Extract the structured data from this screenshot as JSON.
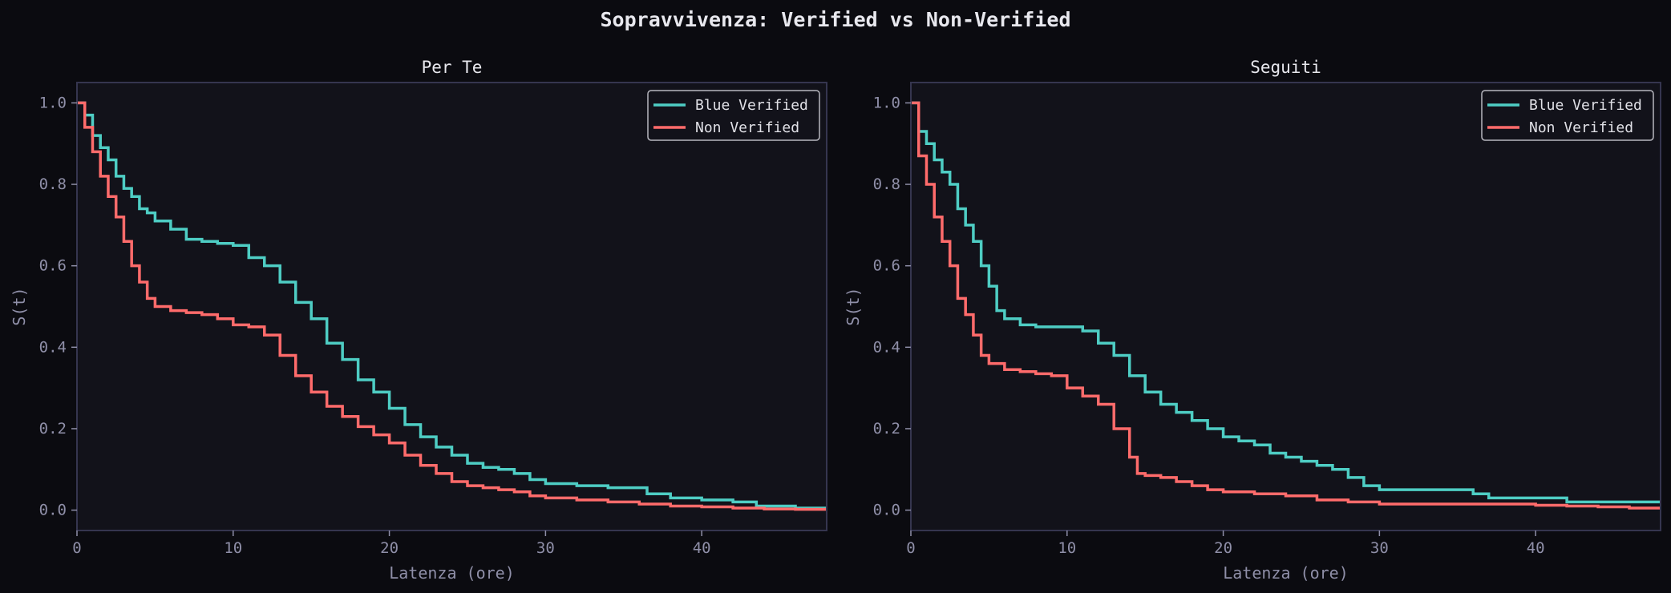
{
  "figure": {
    "title": "Sopravvivenza: Verified vs Non-Verified",
    "colors": {
      "background": "#0b0b10",
      "axes_background": "#12121a",
      "axes_border": "#35354f",
      "tick_label": "#8f8fa8",
      "title_text": "#e8e8ee",
      "verified": "#4ecdc4",
      "non_verified": "#ff6b6b"
    }
  },
  "chart_data": [
    {
      "type": "line",
      "subtype": "kaplan-meier step",
      "title": "Per Te",
      "xlabel": "Latenza (ore)",
      "ylabel": "S(t)",
      "xlim": [
        0,
        48
      ],
      "ylim": [
        -0.05,
        1.05
      ],
      "xticks": [
        0,
        10,
        20,
        30,
        40
      ],
      "xtick_labels": [
        "0",
        "10",
        "20",
        "30",
        "40"
      ],
      "yticks": [
        0.0,
        0.2,
        0.4,
        0.6,
        0.8,
        1.0
      ],
      "ytick_labels": [
        "0.0",
        "0.2",
        "0.4",
        "0.6",
        "0.8",
        "1.0"
      ],
      "grid": false,
      "legend_position": "upper right",
      "series": [
        {
          "name": "Blue Verified",
          "color": "#4ecdc4",
          "x": [
            0,
            0.5,
            1,
            1.5,
            2,
            2.5,
            3,
            3.5,
            4,
            4.5,
            5,
            6,
            7,
            8,
            9,
            10,
            11,
            12,
            13,
            14,
            15,
            16,
            17,
            18,
            19,
            20,
            21,
            22,
            23,
            24,
            25,
            26,
            27,
            28,
            29,
            30,
            32,
            34,
            35.5,
            36.5,
            38,
            40,
            42,
            43.5,
            46,
            48
          ],
          "values": [
            1.0,
            0.97,
            0.92,
            0.89,
            0.86,
            0.82,
            0.79,
            0.77,
            0.74,
            0.73,
            0.71,
            0.69,
            0.665,
            0.66,
            0.655,
            0.65,
            0.62,
            0.6,
            0.56,
            0.51,
            0.47,
            0.41,
            0.37,
            0.32,
            0.29,
            0.25,
            0.21,
            0.18,
            0.155,
            0.135,
            0.115,
            0.105,
            0.1,
            0.09,
            0.075,
            0.065,
            0.06,
            0.055,
            0.055,
            0.04,
            0.03,
            0.025,
            0.02,
            0.01,
            0.005,
            0.0
          ]
        },
        {
          "name": "Non Verified",
          "color": "#ff6b6b",
          "x": [
            0,
            0.5,
            1,
            1.5,
            2,
            2.5,
            3,
            3.5,
            4,
            4.5,
            5,
            6,
            7,
            8,
            9,
            10,
            11,
            12,
            13,
            14,
            15,
            16,
            17,
            18,
            19,
            20,
            21,
            22,
            23,
            24,
            25,
            26,
            27,
            28,
            29,
            30,
            32,
            34,
            36,
            38,
            40,
            42,
            44,
            46,
            48
          ],
          "values": [
            1.0,
            0.94,
            0.88,
            0.82,
            0.77,
            0.72,
            0.66,
            0.6,
            0.56,
            0.52,
            0.5,
            0.49,
            0.485,
            0.48,
            0.47,
            0.455,
            0.45,
            0.43,
            0.38,
            0.33,
            0.29,
            0.255,
            0.23,
            0.205,
            0.185,
            0.165,
            0.135,
            0.11,
            0.09,
            0.07,
            0.06,
            0.055,
            0.05,
            0.045,
            0.035,
            0.03,
            0.025,
            0.02,
            0.015,
            0.01,
            0.008,
            0.005,
            0.003,
            0.002,
            0.0
          ]
        }
      ]
    },
    {
      "type": "line",
      "subtype": "kaplan-meier step",
      "title": "Seguiti",
      "xlabel": "Latenza (ore)",
      "ylabel": "S(t)",
      "xlim": [
        0,
        48
      ],
      "ylim": [
        -0.05,
        1.05
      ],
      "xticks": [
        0,
        10,
        20,
        30,
        40
      ],
      "xtick_labels": [
        "0",
        "10",
        "20",
        "30",
        "40"
      ],
      "yticks": [
        0.0,
        0.2,
        0.4,
        0.6,
        0.8,
        1.0
      ],
      "ytick_labels": [
        "0.0",
        "0.2",
        "0.4",
        "0.6",
        "0.8",
        "1.0"
      ],
      "grid": false,
      "legend_position": "upper right",
      "series": [
        {
          "name": "Blue Verified",
          "color": "#4ecdc4",
          "x": [
            0,
            0.5,
            1,
            1.5,
            2,
            2.5,
            3,
            3.5,
            4,
            4.5,
            5,
            5.5,
            6,
            7,
            8,
            9,
            10,
            11,
            12,
            13,
            14,
            15,
            16,
            17,
            18,
            19,
            20,
            21,
            22,
            23,
            24,
            25,
            26,
            27,
            28,
            29,
            30,
            32,
            34,
            36,
            37,
            40,
            42,
            44,
            46,
            48
          ],
          "values": [
            1.0,
            0.93,
            0.9,
            0.86,
            0.83,
            0.8,
            0.74,
            0.7,
            0.66,
            0.6,
            0.55,
            0.49,
            0.47,
            0.455,
            0.45,
            0.45,
            0.45,
            0.44,
            0.41,
            0.38,
            0.33,
            0.29,
            0.26,
            0.24,
            0.22,
            0.2,
            0.18,
            0.17,
            0.16,
            0.14,
            0.13,
            0.12,
            0.11,
            0.1,
            0.08,
            0.06,
            0.05,
            0.05,
            0.05,
            0.04,
            0.03,
            0.03,
            0.02,
            0.02,
            0.02,
            0.02
          ]
        },
        {
          "name": "Non Verified",
          "color": "#ff6b6b",
          "x": [
            0,
            0.5,
            1,
            1.5,
            2,
            2.5,
            3,
            3.5,
            4,
            4.5,
            5,
            6,
            7,
            8,
            9,
            10,
            11,
            12,
            13,
            14,
            14.5,
            15,
            16,
            17,
            18,
            19,
            20,
            22,
            24,
            26,
            28,
            30,
            32,
            34,
            36,
            38,
            40,
            42,
            44,
            46,
            48
          ],
          "values": [
            1.0,
            0.87,
            0.8,
            0.72,
            0.66,
            0.6,
            0.52,
            0.48,
            0.43,
            0.38,
            0.36,
            0.345,
            0.34,
            0.335,
            0.33,
            0.3,
            0.28,
            0.26,
            0.2,
            0.13,
            0.09,
            0.085,
            0.08,
            0.07,
            0.06,
            0.05,
            0.045,
            0.04,
            0.035,
            0.025,
            0.02,
            0.015,
            0.015,
            0.015,
            0.015,
            0.015,
            0.012,
            0.01,
            0.008,
            0.005,
            0.003
          ]
        }
      ]
    }
  ]
}
